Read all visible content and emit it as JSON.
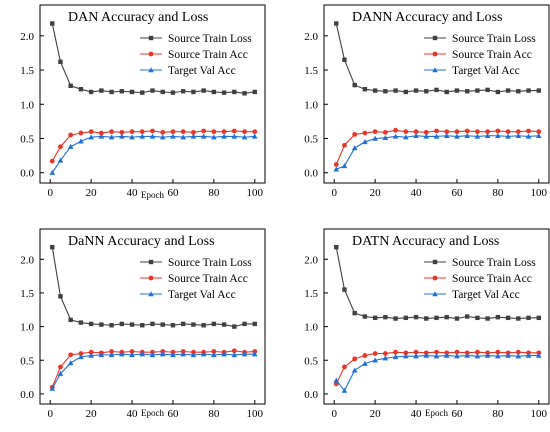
{
  "chart_data": [
    {
      "type": "line",
      "title": "DAN Accuracy and Loss",
      "xlabel": "Epoch",
      "ylabel": "",
      "xlim": [
        -5,
        105
      ],
      "ylim": [
        -0.15,
        2.45
      ],
      "xticks": [
        "0",
        "20",
        "40",
        "60",
        "80",
        "100"
      ],
      "yticks": [
        "0.0",
        "0.5",
        "1.0",
        "1.5",
        "2.0"
      ],
      "legend_position": "top-right",
      "series": [
        {
          "name": "Source Train Loss",
          "color": "#404040",
          "marker": "square",
          "x": [
            1,
            5,
            10,
            15,
            20,
            25,
            30,
            35,
            40,
            45,
            50,
            55,
            60,
            65,
            70,
            75,
            80,
            85,
            90,
            95,
            100
          ],
          "y": [
            2.18,
            1.62,
            1.27,
            1.22,
            1.18,
            1.2,
            1.18,
            1.19,
            1.18,
            1.17,
            1.2,
            1.18,
            1.17,
            1.19,
            1.18,
            1.2,
            1.18,
            1.17,
            1.18,
            1.16,
            1.18
          ]
        },
        {
          "name": "Source Train Acc",
          "color": "#e8352a",
          "marker": "circle",
          "x": [
            1,
            5,
            10,
            15,
            20,
            25,
            30,
            35,
            40,
            45,
            50,
            55,
            60,
            65,
            70,
            75,
            80,
            85,
            90,
            95,
            100
          ],
          "y": [
            0.17,
            0.38,
            0.55,
            0.58,
            0.6,
            0.58,
            0.6,
            0.59,
            0.6,
            0.6,
            0.61,
            0.59,
            0.6,
            0.6,
            0.59,
            0.61,
            0.6,
            0.6,
            0.61,
            0.6,
            0.6
          ]
        },
        {
          "name": "Target Val Acc",
          "color": "#1f6fd6",
          "marker": "triangle",
          "x": [
            1,
            5,
            10,
            15,
            20,
            25,
            30,
            35,
            40,
            45,
            50,
            55,
            60,
            65,
            70,
            75,
            80,
            85,
            90,
            95,
            100
          ],
          "y": [
            0.0,
            0.18,
            0.38,
            0.46,
            0.52,
            0.53,
            0.52,
            0.53,
            0.52,
            0.53,
            0.53,
            0.52,
            0.53,
            0.52,
            0.53,
            0.53,
            0.52,
            0.53,
            0.53,
            0.52,
            0.53
          ]
        }
      ]
    },
    {
      "type": "line",
      "title": "DANN Accuracy and Loss",
      "xlabel": "",
      "ylabel": "",
      "xlim": [
        -5,
        105
      ],
      "ylim": [
        -0.15,
        2.45
      ],
      "xticks": [
        "0",
        "20",
        "40",
        "60",
        "80",
        "100"
      ],
      "yticks": [
        "0.0",
        "0.5",
        "1.0",
        "1.5",
        "2.0"
      ],
      "legend_position": "top-right",
      "series": [
        {
          "name": "Source Train Loss",
          "color": "#404040",
          "marker": "square",
          "x": [
            1,
            5,
            10,
            15,
            20,
            25,
            30,
            35,
            40,
            45,
            50,
            55,
            60,
            65,
            70,
            75,
            80,
            85,
            90,
            95,
            100
          ],
          "y": [
            2.18,
            1.65,
            1.28,
            1.22,
            1.2,
            1.19,
            1.2,
            1.18,
            1.2,
            1.19,
            1.21,
            1.18,
            1.2,
            1.19,
            1.2,
            1.21,
            1.18,
            1.2,
            1.19,
            1.2,
            1.2
          ]
        },
        {
          "name": "Source Train Acc",
          "color": "#e8352a",
          "marker": "circle",
          "x": [
            1,
            5,
            10,
            15,
            20,
            25,
            30,
            35,
            40,
            45,
            50,
            55,
            60,
            65,
            70,
            75,
            80,
            85,
            90,
            95,
            100
          ],
          "y": [
            0.12,
            0.4,
            0.56,
            0.58,
            0.6,
            0.59,
            0.62,
            0.6,
            0.6,
            0.59,
            0.61,
            0.6,
            0.6,
            0.61,
            0.6,
            0.6,
            0.61,
            0.6,
            0.6,
            0.61,
            0.6
          ]
        },
        {
          "name": "Target Val Acc",
          "color": "#1f6fd6",
          "marker": "triangle",
          "x": [
            1,
            5,
            10,
            15,
            20,
            25,
            30,
            35,
            40,
            45,
            50,
            55,
            60,
            65,
            70,
            75,
            80,
            85,
            90,
            95,
            100
          ],
          "y": [
            0.05,
            0.1,
            0.36,
            0.45,
            0.5,
            0.51,
            0.53,
            0.52,
            0.54,
            0.53,
            0.53,
            0.54,
            0.53,
            0.54,
            0.53,
            0.54,
            0.54,
            0.53,
            0.54,
            0.53,
            0.54
          ]
        }
      ]
    },
    {
      "type": "line",
      "title": "DaNN Accuracy and Loss",
      "xlabel": "Epoch",
      "ylabel": "",
      "xlim": [
        -5,
        105
      ],
      "ylim": [
        -0.15,
        2.45
      ],
      "xticks": [
        "0",
        "20",
        "40",
        "60",
        "80",
        "100"
      ],
      "yticks": [
        "0.0",
        "0.5",
        "1.0",
        "1.5",
        "2.0"
      ],
      "legend_position": "top-right",
      "series": [
        {
          "name": "Source Train Loss",
          "color": "#404040",
          "marker": "square",
          "x": [
            1,
            5,
            10,
            15,
            20,
            25,
            30,
            35,
            40,
            45,
            50,
            55,
            60,
            65,
            70,
            75,
            80,
            85,
            90,
            95,
            100
          ],
          "y": [
            2.18,
            1.45,
            1.1,
            1.06,
            1.04,
            1.03,
            1.02,
            1.04,
            1.03,
            1.02,
            1.04,
            1.03,
            1.02,
            1.04,
            1.03,
            1.02,
            1.04,
            1.03,
            1.0,
            1.04,
            1.04
          ]
        },
        {
          "name": "Source Train Acc",
          "color": "#e8352a",
          "marker": "circle",
          "x": [
            1,
            5,
            10,
            15,
            20,
            25,
            30,
            35,
            40,
            45,
            50,
            55,
            60,
            65,
            70,
            75,
            80,
            85,
            90,
            95,
            100
          ],
          "y": [
            0.1,
            0.4,
            0.58,
            0.6,
            0.62,
            0.61,
            0.63,
            0.62,
            0.63,
            0.62,
            0.62,
            0.63,
            0.62,
            0.63,
            0.62,
            0.62,
            0.63,
            0.62,
            0.64,
            0.62,
            0.63
          ]
        },
        {
          "name": "Target Val Acc",
          "color": "#1f6fd6",
          "marker": "triangle",
          "x": [
            1,
            5,
            10,
            15,
            20,
            25,
            30,
            35,
            40,
            45,
            50,
            55,
            60,
            65,
            70,
            75,
            80,
            85,
            90,
            95,
            100
          ],
          "y": [
            0.08,
            0.3,
            0.46,
            0.55,
            0.57,
            0.58,
            0.58,
            0.59,
            0.58,
            0.59,
            0.58,
            0.59,
            0.58,
            0.59,
            0.58,
            0.59,
            0.58,
            0.59,
            0.58,
            0.59,
            0.59
          ]
        }
      ]
    },
    {
      "type": "line",
      "title": "DATN Accuracy and Loss",
      "xlabel": "Epoch",
      "ylabel": "",
      "xlim": [
        -5,
        105
      ],
      "ylim": [
        -0.15,
        2.45
      ],
      "xticks": [
        "0",
        "20",
        "40",
        "60",
        "80",
        "100"
      ],
      "yticks": [
        "0.0",
        "0.5",
        "1.0",
        "1.5",
        "2.0"
      ],
      "legend_position": "top-right",
      "series": [
        {
          "name": "Source Train Loss",
          "color": "#404040",
          "marker": "square",
          "x": [
            1,
            5,
            10,
            15,
            20,
            25,
            30,
            35,
            40,
            45,
            50,
            55,
            60,
            65,
            70,
            75,
            80,
            85,
            90,
            95,
            100
          ],
          "y": [
            2.18,
            1.55,
            1.2,
            1.15,
            1.13,
            1.14,
            1.12,
            1.13,
            1.14,
            1.12,
            1.13,
            1.14,
            1.12,
            1.15,
            1.13,
            1.12,
            1.14,
            1.13,
            1.12,
            1.13,
            1.13
          ]
        },
        {
          "name": "Source Train Acc",
          "color": "#e8352a",
          "marker": "circle",
          "x": [
            1,
            5,
            10,
            15,
            20,
            25,
            30,
            35,
            40,
            45,
            50,
            55,
            60,
            65,
            70,
            75,
            80,
            85,
            90,
            95,
            100
          ],
          "y": [
            0.15,
            0.4,
            0.52,
            0.57,
            0.6,
            0.6,
            0.62,
            0.61,
            0.62,
            0.61,
            0.62,
            0.61,
            0.62,
            0.61,
            0.62,
            0.61,
            0.62,
            0.61,
            0.62,
            0.61,
            0.61
          ]
        },
        {
          "name": "Target Val Acc",
          "color": "#1f6fd6",
          "marker": "triangle",
          "x": [
            1,
            5,
            10,
            15,
            20,
            25,
            30,
            35,
            40,
            45,
            50,
            55,
            60,
            65,
            70,
            75,
            80,
            85,
            90,
            95,
            100
          ],
          "y": [
            0.2,
            0.05,
            0.35,
            0.45,
            0.5,
            0.53,
            0.55,
            0.56,
            0.56,
            0.57,
            0.56,
            0.57,
            0.56,
            0.57,
            0.56,
            0.57,
            0.56,
            0.57,
            0.56,
            0.57,
            0.57
          ]
        }
      ]
    }
  ]
}
